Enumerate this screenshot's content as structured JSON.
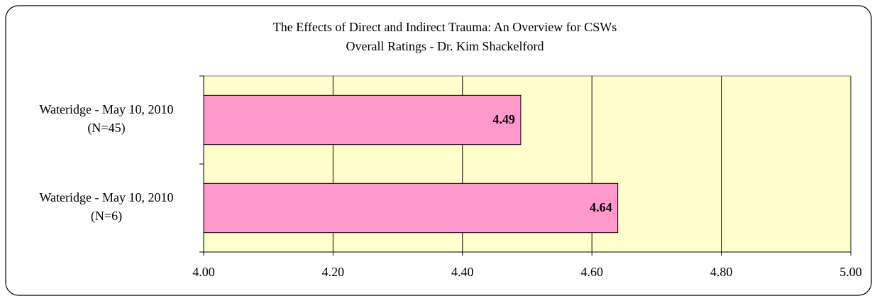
{
  "chart_data": {
    "type": "bar",
    "orientation": "horizontal",
    "title": "The Effects of Direct and Indirect Trauma: An Overview for CSWs",
    "subtitle": "Overall Ratings - Dr. Kim Shackelford",
    "categories": [
      [
        "Wateridge - May 10, 2010",
        "(N=45)"
      ],
      [
        "Wateridge - May 10, 2010",
        "(N=6)"
      ]
    ],
    "values": [
      4.49,
      4.64
    ],
    "color": "#ff99cc",
    "plot_background": "#ffffcc",
    "xlim": [
      4,
      5
    ],
    "xticks": [
      {
        "value": 4,
        "label": "4.00"
      },
      {
        "value": 4.2,
        "label": "4.20"
      },
      {
        "value": 4.4,
        "label": "4.40"
      },
      {
        "value": 4.6,
        "label": "4.60"
      },
      {
        "value": 4.8,
        "label": "4.80"
      },
      {
        "value": 5,
        "label": "5.00"
      }
    ],
    "grid": true
  }
}
